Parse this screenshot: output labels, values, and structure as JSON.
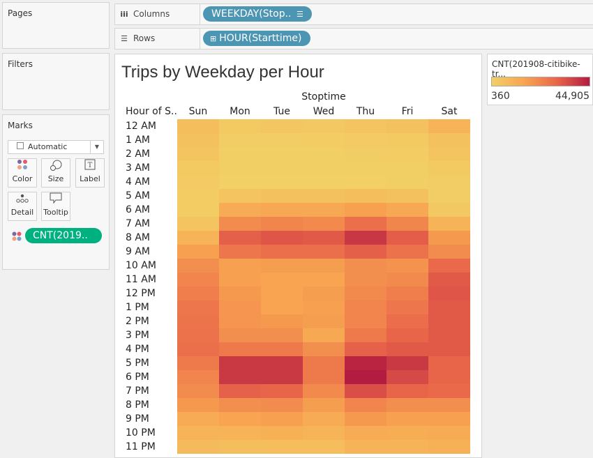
{
  "panels": {
    "pages": "Pages",
    "filters": "Filters",
    "marks": "Marks"
  },
  "marks": {
    "mark_type": "Automatic",
    "buttons": [
      {
        "label": "Color",
        "icon": "color-dots-icon"
      },
      {
        "label": "Size",
        "icon": "size-circles-icon"
      },
      {
        "label": "Label",
        "icon": "label-t-icon"
      },
      {
        "label": "Detail",
        "icon": "detail-dots-icon"
      },
      {
        "label": "Tooltip",
        "icon": "tooltip-bubble-icon"
      }
    ],
    "color_pill": "CNT(2019..",
    "pill_color": "#00b180"
  },
  "shelves": {
    "columns_label": "Columns",
    "columns_pill": "WEEKDAY(Stop..",
    "rows_label": "Rows",
    "rows_pill": "HOUR(Starttime)",
    "pill_color": "#4c96b4"
  },
  "legend": {
    "title": "CNT(201908-citibike-tr...",
    "min_label": "360",
    "max_label": "44,905",
    "colors": [
      "#f2d066",
      "#f8a450",
      "#e9654a",
      "#b41b40"
    ]
  },
  "chart_data": {
    "type": "heatmap",
    "title": "Trips by Weekday per Hour",
    "column_header": "Stoptime",
    "row_header": "Hour of S..",
    "columns": [
      "Sun",
      "Mon",
      "Tue",
      "Wed",
      "Thu",
      "Fri",
      "Sat"
    ],
    "rows": [
      "12 AM",
      "1 AM",
      "2 AM",
      "3 AM",
      "4 AM",
      "5 AM",
      "6 AM",
      "7 AM",
      "8 AM",
      "9 AM",
      "10 AM",
      "11 AM",
      "12 PM",
      "1 PM",
      "2 PM",
      "3 PM",
      "4 PM",
      "5 PM",
      "6 PM",
      "7 PM",
      "8 PM",
      "9 PM",
      "10 PM",
      "11 PM"
    ],
    "value_range": [
      360,
      44905
    ],
    "values": [
      [
        5700,
        2600,
        3500,
        3000,
        3900,
        4800,
        9300
      ],
      [
        4800,
        1250,
        1250,
        1700,
        2140,
        2600,
        4800
      ],
      [
        3900,
        800,
        800,
        800,
        1250,
        1700,
        3900
      ],
      [
        2600,
        800,
        800,
        800,
        800,
        800,
        2600
      ],
      [
        2140,
        360,
        360,
        360,
        360,
        800,
        1250
      ],
      [
        1700,
        3900,
        4800,
        4800,
        5700,
        4800,
        1250
      ],
      [
        1700,
        11500,
        12800,
        12400,
        14600,
        12400,
        3000
      ],
      [
        3900,
        19100,
        20000,
        19500,
        24900,
        20000,
        9300
      ],
      [
        9300,
        28400,
        30600,
        29800,
        38200,
        28900,
        16000
      ],
      [
        14600,
        23500,
        24900,
        24900,
        28400,
        24400,
        19100
      ],
      [
        18200,
        14600,
        15100,
        15100,
        18200,
        17300,
        26200
      ],
      [
        20400,
        14600,
        13700,
        13700,
        18200,
        19500,
        29800
      ],
      [
        21700,
        16000,
        13700,
        15100,
        19500,
        21700,
        30600
      ],
      [
        23500,
        16800,
        13700,
        14600,
        20400,
        23500,
        29800
      ],
      [
        24000,
        16800,
        16000,
        15100,
        20400,
        25300,
        29800
      ],
      [
        24400,
        18200,
        18200,
        12400,
        22600,
        27100,
        29800
      ],
      [
        24900,
        22600,
        22600,
        18200,
        28000,
        29800,
        29800
      ],
      [
        22600,
        37800,
        37800,
        22600,
        42700,
        37800,
        27100
      ],
      [
        20400,
        37800,
        37800,
        22600,
        44905,
        33800,
        27100
      ],
      [
        19100,
        28000,
        27100,
        19500,
        32400,
        27100,
        26200
      ],
      [
        16000,
        18200,
        19100,
        15100,
        20400,
        18200,
        18200
      ],
      [
        11500,
        13700,
        14600,
        11500,
        16000,
        14600,
        14600
      ],
      [
        9300,
        9300,
        10200,
        9300,
        11500,
        11050,
        11500
      ],
      [
        7000,
        5700,
        6150,
        6150,
        9300,
        9300,
        10200
      ]
    ]
  }
}
